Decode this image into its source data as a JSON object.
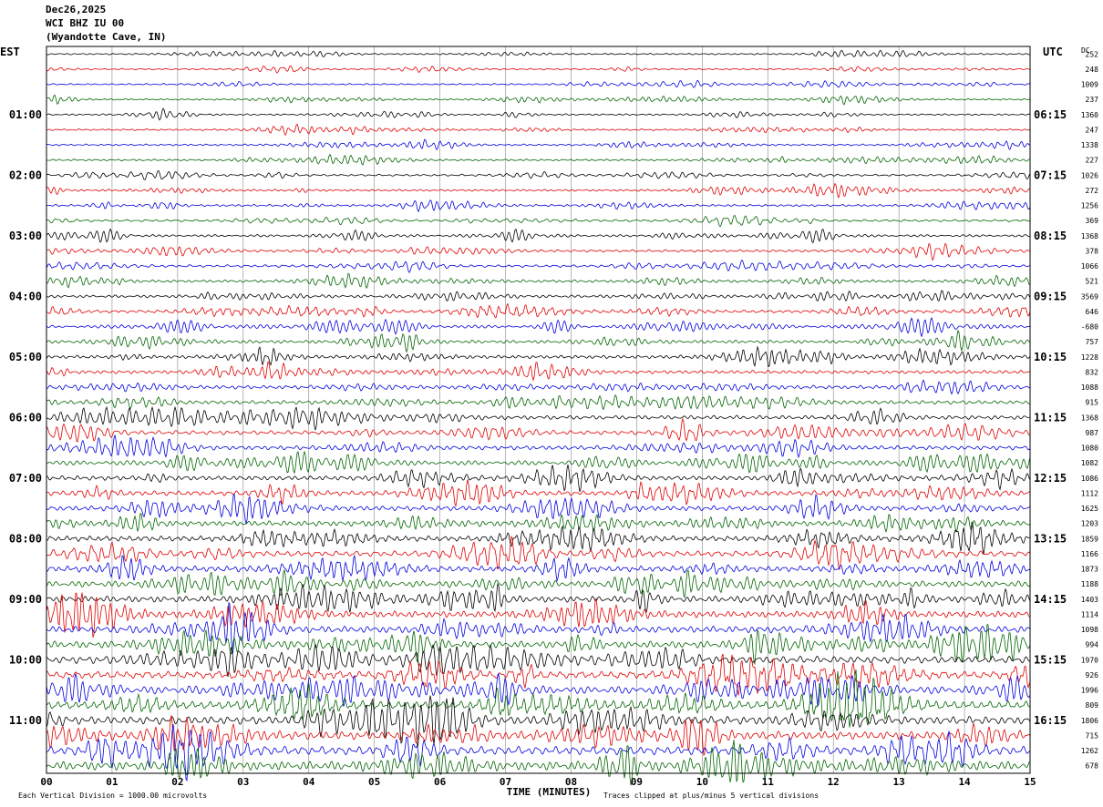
{
  "header": {
    "date": "Dec26,2025",
    "station": "WCI BHZ IU 00",
    "location": "(Wyandotte Cave, IN)"
  },
  "axis": {
    "left_timezone": "EST",
    "right_timezone": "UTC",
    "right_column_header": "DC",
    "xlabel": "TIME (MINUTES)"
  },
  "footer": {
    "scale_note": "Each Vertical Division = 1000.00 microvolts",
    "clip_note": "Traces clipped at plus/minus 5 vertical divisions"
  },
  "colors": {
    "trace_cycle": [
      "#000000",
      "#e00000",
      "#0000e0",
      "#006400"
    ],
    "grid": "#888888",
    "frame": "#000000"
  },
  "chart_data": {
    "type": "line",
    "subtype": "helicorder",
    "x_unit": "minutes",
    "xlim": [
      0,
      15
    ],
    "x_ticks": [
      "00",
      "01",
      "02",
      "03",
      "04",
      "05",
      "06",
      "07",
      "08",
      "09",
      "10",
      "11",
      "12",
      "13",
      "14",
      "15"
    ],
    "trace_count": 48,
    "minutes_per_trace": 15,
    "left_hour_labels": [
      "01:00",
      "02:00",
      "03:00",
      "04:00",
      "05:00",
      "06:00",
      "07:00",
      "08:00",
      "09:00",
      "10:00",
      "11:00"
    ],
    "right_hour_labels": [
      "06:15",
      "07:15",
      "08:15",
      "09:15",
      "10:15",
      "11:15",
      "12:15",
      "13:15",
      "14:15",
      "15:15",
      "16:15"
    ],
    "dc_offsets": [
      "252",
      "248",
      "1009",
      "237",
      "1360",
      "247",
      "1338",
      "227",
      "1026",
      "272",
      "1256",
      "369",
      "1368",
      "378",
      "1066",
      "521",
      "3569",
      "646",
      "-680",
      "757",
      "1228",
      "832",
      "1088",
      "915",
      "1368",
      "987",
      "1080",
      "1082",
      "1086",
      "1112",
      "1625",
      "1203",
      "1859",
      "1166",
      "1873",
      "1188",
      "1403",
      "1114",
      "1098",
      "994",
      "1970",
      "926",
      "1996",
      "809",
      "1806",
      "715",
      "1262",
      "678"
    ]
  }
}
